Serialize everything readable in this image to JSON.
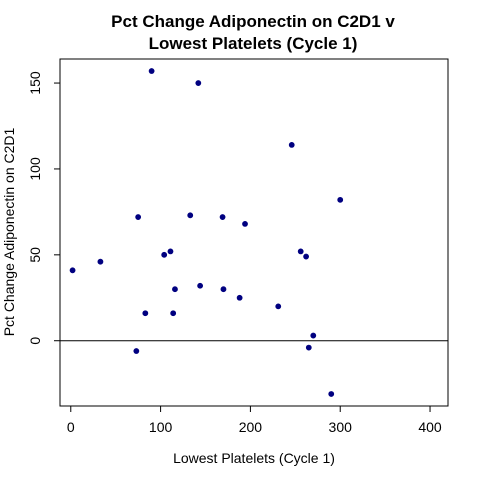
{
  "colors": {
    "background": "#ffffff",
    "axis": "#000000",
    "points": "#000080",
    "reference_line": "#000000"
  },
  "chart_data": {
    "type": "scatter",
    "title": "Pct Change Adiponectin on C2D1 v\nLowest Platelets (Cycle 1)",
    "title_lines": [
      "Pct Change Adiponectin on C2D1 v",
      "Lowest Platelets (Cycle 1)"
    ],
    "xlabel": "Lowest Platelets (Cycle 1)",
    "ylabel": "Pct Change Adiponectin on C2D1",
    "xlim": [
      -12,
      420
    ],
    "ylim": [
      -38,
      164
    ],
    "xticks": [
      0,
      100,
      200,
      300,
      400
    ],
    "yticks": [
      0,
      50,
      100,
      150
    ],
    "grid": false,
    "legend": "none",
    "reference_lines": [
      {
        "axis": "y",
        "value": 0
      }
    ],
    "series": [
      {
        "points": [
          {
            "x": 2,
            "y": 41
          },
          {
            "x": 33,
            "y": 46
          },
          {
            "x": 73,
            "y": -6
          },
          {
            "x": 75,
            "y": 72
          },
          {
            "x": 83,
            "y": 16
          },
          {
            "x": 90,
            "y": 157
          },
          {
            "x": 104,
            "y": 50
          },
          {
            "x": 111,
            "y": 52
          },
          {
            "x": 114,
            "y": 16
          },
          {
            "x": 116,
            "y": 30
          },
          {
            "x": 133,
            "y": 73
          },
          {
            "x": 142,
            "y": 150
          },
          {
            "x": 144,
            "y": 32
          },
          {
            "x": 169,
            "y": 72
          },
          {
            "x": 170,
            "y": 30
          },
          {
            "x": 188,
            "y": 25
          },
          {
            "x": 194,
            "y": 68
          },
          {
            "x": 231,
            "y": 20
          },
          {
            "x": 246,
            "y": 114
          },
          {
            "x": 256,
            "y": 52
          },
          {
            "x": 262,
            "y": 49
          },
          {
            "x": 265,
            "y": -4
          },
          {
            "x": 270,
            "y": 3
          },
          {
            "x": 290,
            "y": -31
          },
          {
            "x": 300,
            "y": 82
          }
        ]
      }
    ]
  }
}
